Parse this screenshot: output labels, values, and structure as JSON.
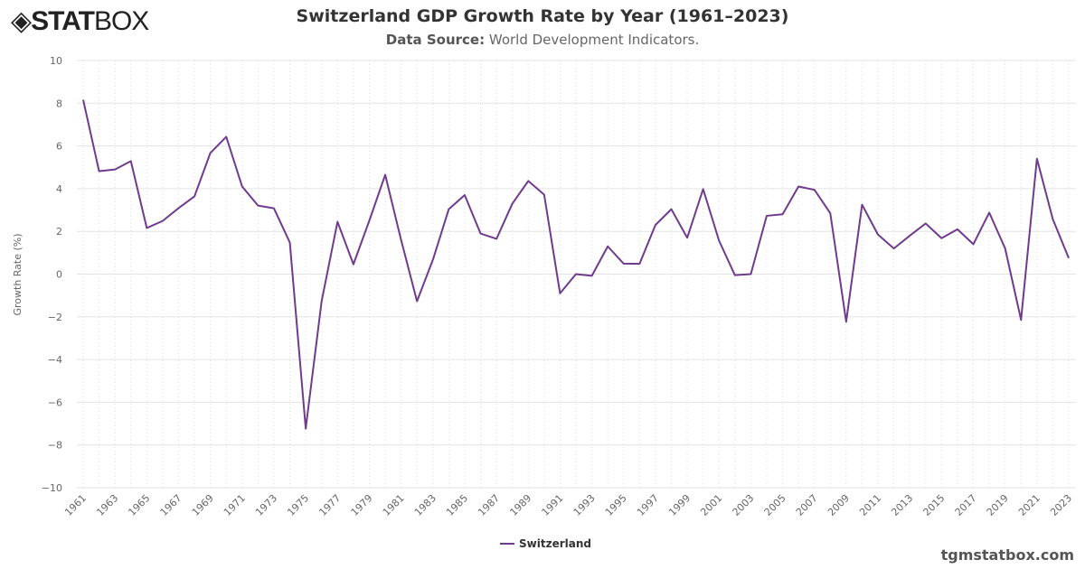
{
  "brand": {
    "logo_text": "STATBOX",
    "watermark": "tgmstatbox.com"
  },
  "header": {
    "title": "Switzerland GDP Growth Rate by Year (1961–2023)",
    "source_label": "Data Source:",
    "source_value": "World Development Indicators."
  },
  "chart_data": {
    "type": "line",
    "title": "Switzerland GDP Growth Rate by Year (1961–2023)",
    "ylabel": "Growth Rate (%)",
    "xlabel": "",
    "ylim": [
      -10,
      10
    ],
    "yticks": [
      -10,
      -8,
      -6,
      -4,
      -2,
      0,
      2,
      4,
      6,
      8,
      10
    ],
    "grid": true,
    "legend": "bottom-center",
    "x": [
      1961,
      1962,
      1963,
      1964,
      1965,
      1966,
      1967,
      1968,
      1969,
      1970,
      1971,
      1972,
      1973,
      1974,
      1975,
      1976,
      1977,
      1978,
      1979,
      1980,
      1981,
      1982,
      1983,
      1984,
      1985,
      1986,
      1987,
      1988,
      1989,
      1990,
      1991,
      1992,
      1993,
      1994,
      1995,
      1996,
      1997,
      1998,
      1999,
      2000,
      2001,
      2002,
      2003,
      2004,
      2005,
      2006,
      2007,
      2008,
      2009,
      2010,
      2011,
      2012,
      2013,
      2014,
      2015,
      2016,
      2017,
      2018,
      2019,
      2020,
      2021,
      2022,
      2023
    ],
    "series": [
      {
        "name": "Switzerland",
        "color": "#6f3b8c",
        "values": [
          8.16,
          4.82,
          4.9,
          5.29,
          2.16,
          2.49,
          3.09,
          3.64,
          5.67,
          6.43,
          4.1,
          3.21,
          3.08,
          1.48,
          -7.23,
          -1.27,
          2.45,
          0.46,
          2.5,
          4.65,
          1.6,
          -1.27,
          0.67,
          3.04,
          3.7,
          1.9,
          1.65,
          3.3,
          4.36,
          3.72,
          -0.9,
          0.0,
          -0.08,
          1.3,
          0.49,
          0.48,
          2.3,
          3.04,
          1.7,
          3.98,
          1.57,
          -0.05,
          0.0,
          2.73,
          2.8,
          4.1,
          3.95,
          2.85,
          -2.23,
          3.25,
          1.85,
          1.2,
          1.8,
          2.37,
          1.68,
          2.1,
          1.4,
          2.88,
          1.2,
          -2.14,
          5.4,
          2.57,
          0.75
        ]
      }
    ]
  }
}
